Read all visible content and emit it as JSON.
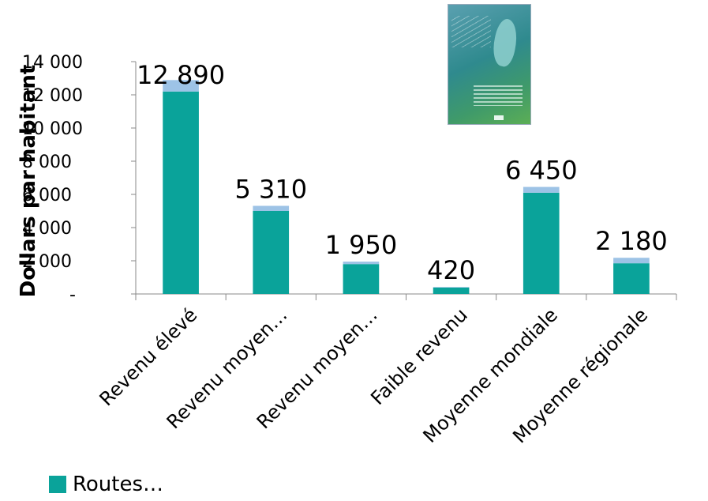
{
  "chart_data": {
    "type": "bar",
    "stacked": true,
    "categories": [
      "Revenu élevé",
      "Revenu moyen…",
      "Revenu moyen…",
      "Faible revenu",
      "Moyenne mondiale",
      "Moyenne régionale"
    ],
    "series": [
      {
        "name": "Routes…",
        "values": [
          12200,
          5000,
          1800,
          390,
          6100,
          1850
        ],
        "color": "#0aa39a"
      },
      {
        "values": [
          690,
          310,
          150,
          30,
          350,
          330
        ],
        "color": "#9dc3e6"
      }
    ],
    "totals_labels": [
      "12 890",
      "5 310",
      "1 950",
      "420",
      "6 450",
      "2 180"
    ],
    "ylabel": "Dollars par habitant",
    "ylim": [
      0,
      14000
    ],
    "y_ticks": [
      {
        "value": 0,
        "label": "-"
      },
      {
        "value": 2000,
        "label": "2 000"
      },
      {
        "value": 4000,
        "label": "4 000"
      },
      {
        "value": 6000,
        "label": "6 000"
      },
      {
        "value": 8000,
        "label": "8 000"
      },
      {
        "value": 10000,
        "label": "10 000"
      },
      {
        "value": 12000,
        "label": "12 000"
      },
      {
        "value": 14000,
        "label": "14 000"
      }
    ],
    "grid": false,
    "legend_position": "bottom-left"
  },
  "legend": {
    "label": "Routes…",
    "color": "#0aa39a"
  }
}
